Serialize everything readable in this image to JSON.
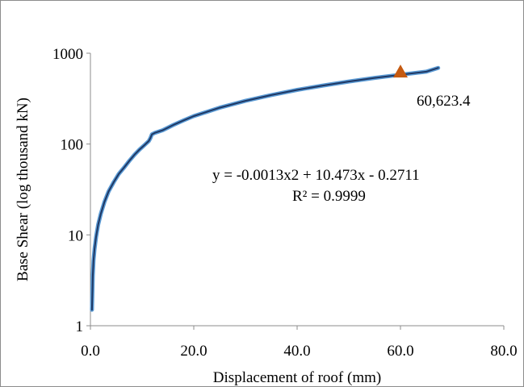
{
  "chart_data": {
    "type": "line",
    "title": "",
    "xlabel": "Displacement of roof (mm)",
    "ylabel": "Base Shear (log thousand kN)",
    "xlim": [
      0,
      80
    ],
    "ylim": [
      1,
      1000
    ],
    "y_scale": "log",
    "grid": false,
    "legend": "none",
    "x_ticks": [
      "0.0",
      "20.0",
      "40.0",
      "60.0",
      "80.0"
    ],
    "y_ticks": [
      "1",
      "10",
      "100",
      "1000"
    ],
    "series": [
      {
        "color": "#1f3864",
        "points": [
          [
            0.3,
            1.5
          ],
          [
            0.45,
            3.5
          ],
          [
            0.6,
            5.2
          ],
          [
            0.8,
            7
          ],
          [
            1.1,
            9.5
          ],
          [
            1.5,
            13
          ],
          [
            2.0,
            17
          ],
          [
            2.7,
            23
          ],
          [
            3.5,
            30
          ],
          [
            4.5,
            38
          ],
          [
            5.5,
            47
          ],
          [
            6.5,
            55
          ],
          [
            7.5,
            65
          ],
          [
            8.5,
            76
          ],
          [
            9.5,
            87
          ],
          [
            10.5,
            98
          ],
          [
            11.3,
            108
          ],
          [
            11.6,
            116
          ],
          [
            11.9,
            128
          ],
          [
            12.5,
            133
          ],
          [
            14,
            142
          ],
          [
            16,
            162
          ],
          [
            18,
            182
          ],
          [
            20,
            203
          ],
          [
            25,
            251
          ],
          [
            30,
            299
          ],
          [
            35,
            346
          ],
          [
            40,
            395
          ],
          [
            45,
            441
          ],
          [
            50,
            488
          ],
          [
            55,
            535
          ],
          [
            60,
            580
          ],
          [
            65,
            626
          ],
          [
            67.3,
            690
          ]
        ]
      }
    ],
    "marker": {
      "x": 60,
      "y": 623.4,
      "label": "60,623.4",
      "color": "#c55a11",
      "shape": "triangle"
    },
    "trendline": {
      "equation": "y = -0.0013x2 + 10.473x - 0.2711",
      "r2": "R² = 0.9999"
    }
  }
}
